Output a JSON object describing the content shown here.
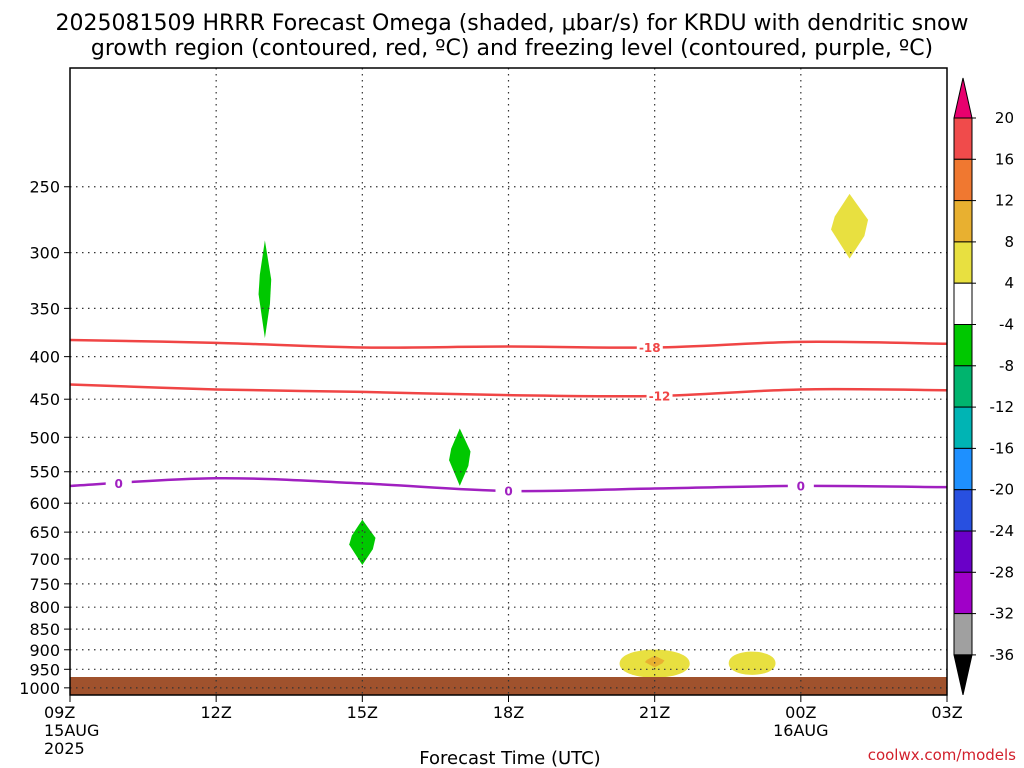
{
  "title_line1": "2025081509 HRRR Forecast Omega (shaded, μbar/s) for KRDU with dendritic snow",
  "title_line2": "growth region (contoured, red, ºC) and freezing level (contoured, purple, ºC)",
  "credit": "coolwx.com/models",
  "chart_data": {
    "type": "heatmap",
    "xlabel": "Forecast Time (UTC)",
    "ylabel": "",
    "x_ticks": [
      {
        "hour": 0,
        "label": "09Z",
        "sub1": "15AUG",
        "sub2": "2025"
      },
      {
        "hour": 3,
        "label": "12Z",
        "sub1": "",
        "sub2": ""
      },
      {
        "hour": 6,
        "label": "15Z",
        "sub1": "",
        "sub2": ""
      },
      {
        "hour": 9,
        "label": "18Z",
        "sub1": "",
        "sub2": ""
      },
      {
        "hour": 12,
        "label": "21Z",
        "sub1": "",
        "sub2": ""
      },
      {
        "hour": 15,
        "label": "00Z",
        "sub1": "16AUG",
        "sub2": ""
      },
      {
        "hour": 18,
        "label": "03Z",
        "sub1": "",
        "sub2": ""
      }
    ],
    "y_scale": "log-pressure",
    "y_ticks": [
      250,
      300,
      350,
      400,
      450,
      500,
      550,
      600,
      650,
      700,
      750,
      800,
      850,
      900,
      950,
      1000
    ],
    "ylim": [
      1020,
      180
    ],
    "xlim": [
      0,
      18
    ],
    "grid": true,
    "colorbar": {
      "labels": [
        20,
        16,
        12,
        8,
        4,
        -4,
        -8,
        -12,
        -16,
        -20,
        -24,
        -28,
        -32,
        -36
      ],
      "colors": [
        "#e8006e",
        "#f04b4b",
        "#f07830",
        "#e8b030",
        "#e8e040",
        "#ffffff",
        "#00c800",
        "#00b46e",
        "#00b4b4",
        "#1e90ff",
        "#2850e0",
        "#6a00c8",
        "#a000c8",
        "#a0a0a0",
        "#000000"
      ]
    },
    "contours": [
      {
        "name": "-18",
        "color": "#f04545",
        "label_at": 11.9,
        "points": [
          [
            0,
            382
          ],
          [
            3,
            385
          ],
          [
            6,
            390
          ],
          [
            9,
            389
          ],
          [
            12,
            390
          ],
          [
            15,
            384
          ],
          [
            18,
            386
          ]
        ]
      },
      {
        "name": "-12",
        "color": "#f04545",
        "label_at": 12.1,
        "points": [
          [
            0,
            432
          ],
          [
            3,
            438
          ],
          [
            6,
            441
          ],
          [
            9,
            445
          ],
          [
            12,
            446
          ],
          [
            15,
            438
          ],
          [
            18,
            439
          ]
        ]
      },
      {
        "name": "0",
        "color": "#a020c0",
        "label_at_list": [
          1,
          9,
          15
        ],
        "points": [
          [
            0,
            572
          ],
          [
            3,
            560
          ],
          [
            6,
            568
          ],
          [
            9,
            580
          ],
          [
            12,
            576
          ],
          [
            15,
            572
          ],
          [
            18,
            574
          ]
        ]
      }
    ],
    "shaded_regions": [
      {
        "value": -6,
        "color": "#00c800",
        "hour": 4,
        "p_top": 290,
        "p_bot": 380,
        "half_width": 0.13
      },
      {
        "value": -6,
        "color": "#00c800",
        "hour": 8,
        "p_top": 488,
        "p_bot": 572,
        "half_width": 0.22
      },
      {
        "value": -6,
        "color": "#00c800",
        "hour": 6,
        "p_top": 628,
        "p_bot": 712,
        "half_width": 0.27
      },
      {
        "value": 6,
        "color": "#e8e040",
        "hour": 16.0,
        "p_top": 255,
        "p_bot": 305,
        "half_width": 0.38
      },
      {
        "value": 6,
        "color": "#e8e040",
        "hour": 12.0,
        "p_top": 888,
        "p_bot": 985,
        "half_width": 0.72
      },
      {
        "value": 10,
        "color": "#e8b030",
        "hour": 12.0,
        "p_top": 915,
        "p_bot": 945,
        "half_width": 0.2
      },
      {
        "value": 6,
        "color": "#e8e040",
        "hour": 14.0,
        "p_top": 895,
        "p_bot": 975,
        "half_width": 0.48
      }
    ],
    "ground_color": "#a0522d"
  }
}
